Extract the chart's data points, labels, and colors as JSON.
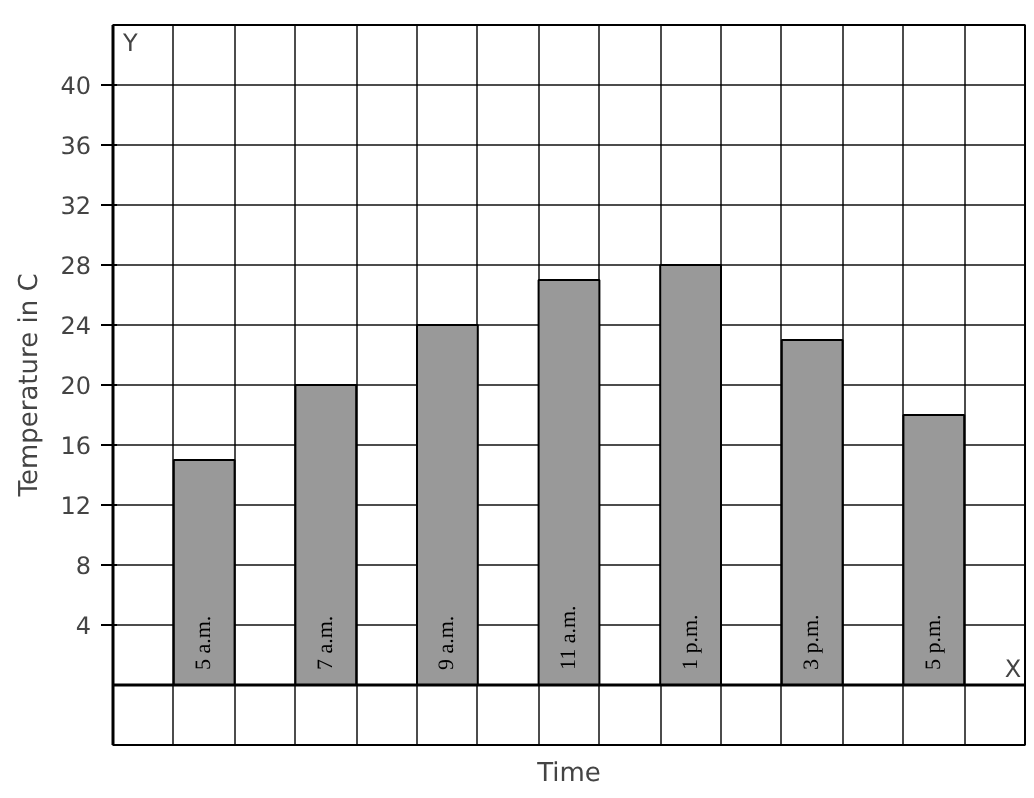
{
  "chart_data": {
    "type": "bar",
    "xlabel": "Time",
    "ylabel": "Temperature in C",
    "categories": [
      "5 a.m.",
      "7 a.m.",
      "9 a.m.",
      "11 a.m.",
      "1 p.m.",
      "3 p.m.",
      "5 p.m."
    ],
    "values": [
      15,
      20,
      24,
      27,
      28,
      23,
      18
    ],
    "color": "#999999",
    "ylim": [
      -4,
      44
    ],
    "yticks": [
      4,
      8,
      12,
      16,
      20,
      24,
      28,
      32,
      36,
      40
    ],
    "grid": true,
    "annotations": [
      "X",
      "Y"
    ]
  }
}
